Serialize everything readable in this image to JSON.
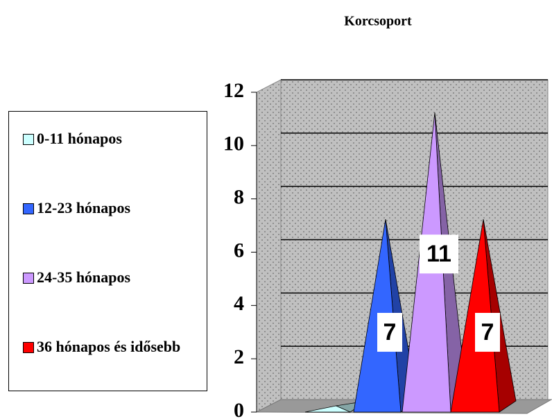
{
  "chart_data": {
    "type": "pyramid",
    "title": "Korcsoport",
    "series": [
      {
        "name": "0-11 hónapos",
        "color": "#ccffff",
        "values": [
          0
        ]
      },
      {
        "name": "12-23 hónapos",
        "color": "#3366ff",
        "values": [
          7
        ]
      },
      {
        "name": "24-35 hónapos",
        "color": "#cc99ff",
        "values": [
          11
        ]
      },
      {
        "name": "36 hónapos és idősebb",
        "color": "#ff0000",
        "values": [
          7
        ]
      }
    ],
    "ylim": [
      0,
      12
    ],
    "yticks": [
      0,
      2,
      4,
      6,
      8,
      10,
      12
    ],
    "grid": true,
    "legend": "left"
  }
}
